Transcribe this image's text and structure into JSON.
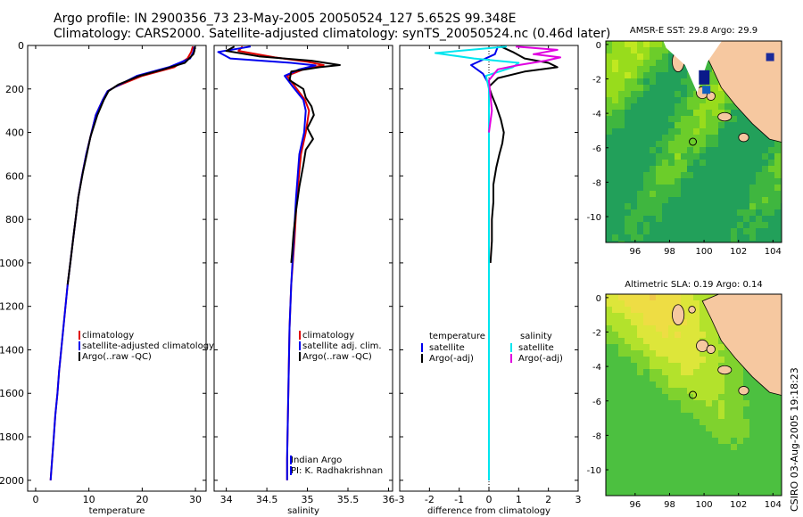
{
  "header": {
    "line1": "Argo profile: IN 2900356_73 23-May-2005 20050524_127 5.652S 99.348E",
    "line2": "Climatology: CARS2000. Satellite-adjusted climatology: synTS_20050524.nc (0.46d later)"
  },
  "credit": "CSIRO 03-Aug-2005 19:18:23",
  "colors": {
    "red": "#e00000",
    "blue": "#0000ee",
    "black": "#000000",
    "cyan": "#00e5ee",
    "magenta": "#e000e0",
    "land": "#f6c8a0",
    "dot": "#e8e8e8"
  },
  "chart_data": [
    {
      "type": "line",
      "id": "temperature",
      "xlabel": "temperature",
      "ylabel": "",
      "xlim": [
        -1.5,
        32
      ],
      "ylim": [
        2050,
        0
      ],
      "xticks": [
        0,
        10,
        20,
        30
      ],
      "xtick_labels": [
        "0",
        "10",
        "20",
        "30"
      ],
      "yticks": [
        0,
        200,
        400,
        600,
        800,
        1000,
        1200,
        1400,
        1600,
        1800,
        2000
      ],
      "ytick_labels": [
        "0",
        "200",
        "400",
        "600",
        "800",
        "1000",
        "1200",
        "1400",
        "1600",
        "1800",
        "2000"
      ],
      "legend": [
        "climatology",
        "satellite-adjusted climatology",
        "Argo(..raw -QC)"
      ],
      "series": [
        {
          "name": "climatology",
          "color": "red",
          "points": [
            [
              29.5,
              5
            ],
            [
              29.2,
              30
            ],
            [
              28.5,
              60
            ],
            [
              26,
              100
            ],
            [
              20,
              140
            ],
            [
              15,
              190
            ],
            [
              13.5,
              210
            ],
            [
              12.6,
              250
            ],
            [
              11.3,
              320
            ],
            [
              10.5,
              400
            ],
            [
              9.5,
              500
            ],
            [
              8.7,
              600
            ],
            [
              8,
              700
            ],
            [
              7.5,
              800
            ],
            [
              7,
              900
            ],
            [
              6.5,
              1000
            ],
            [
              6,
              1100
            ],
            [
              5.6,
              1200
            ],
            [
              5.2,
              1300
            ],
            [
              4.8,
              1400
            ],
            [
              4.4,
              1500
            ],
            [
              4.1,
              1600
            ],
            [
              3.7,
              1700
            ],
            [
              3.4,
              1800
            ],
            [
              3.1,
              1900
            ],
            [
              2.8,
              2000
            ]
          ]
        },
        {
          "name": "satellite-adjusted climatology",
          "color": "blue",
          "points": [
            [
              29.8,
              5
            ],
            [
              29.6,
              30
            ],
            [
              29,
              60
            ],
            [
              25,
              100
            ],
            [
              19,
              140
            ],
            [
              15,
              190
            ],
            [
              13.5,
              210
            ],
            [
              12.6,
              250
            ],
            [
              11.3,
              320
            ],
            [
              10.5,
              400
            ],
            [
              9.5,
              500
            ],
            [
              8.7,
              600
            ],
            [
              8,
              700
            ],
            [
              7.5,
              800
            ],
            [
              7,
              900
            ],
            [
              6.5,
              1000
            ],
            [
              6,
              1100
            ],
            [
              5.6,
              1200
            ],
            [
              5.2,
              1300
            ],
            [
              4.8,
              1400
            ],
            [
              4.4,
              1500
            ],
            [
              4.1,
              1600
            ],
            [
              3.7,
              1700
            ],
            [
              3.4,
              1800
            ],
            [
              3.1,
              1900
            ],
            [
              2.8,
              2000
            ]
          ]
        },
        {
          "name": "Argo(..raw -QC)",
          "color": "black",
          "points": [
            [
              29.9,
              5
            ],
            [
              29.8,
              25
            ],
            [
              29.6,
              40
            ],
            [
              28,
              80
            ],
            [
              24,
              110
            ],
            [
              19.5,
              140
            ],
            [
              15.5,
              180
            ],
            [
              13.7,
              210
            ],
            [
              12.8,
              250
            ],
            [
              11.6,
              320
            ],
            [
              10.3,
              420
            ],
            [
              9.6,
              500
            ],
            [
              8.9,
              580
            ],
            [
              8,
              700
            ],
            [
              7.6,
              780
            ],
            [
              7.1,
              880
            ],
            [
              6.7,
              960
            ],
            [
              6.3,
              1040
            ],
            [
              6,
              1100
            ]
          ]
        }
      ]
    },
    {
      "type": "line",
      "id": "salinity",
      "xlabel": "salinity",
      "ylabel": "",
      "xlim": [
        33.85,
        36.05
      ],
      "ylim": [
        2050,
        0
      ],
      "xticks": [
        34,
        34.5,
        35,
        35.5,
        36
      ],
      "xtick_labels": [
        "34",
        "34.5",
        "35",
        "35.5",
        "36"
      ],
      "legend": [
        "climatology",
        "satellite adj. clim.",
        "Argo(..raw -QC)"
      ],
      "annotation": [
        "Indian Argo",
        "PI: K. Radhakrishnan"
      ],
      "series": [
        {
          "name": "climatology",
          "color": "red",
          "points": [
            [
              34.2,
              5
            ],
            [
              34.15,
              25
            ],
            [
              34.6,
              55
            ],
            [
              35,
              75
            ],
            [
              35.2,
              90
            ],
            [
              34.95,
              110
            ],
            [
              34.75,
              140
            ],
            [
              34.85,
              190
            ],
            [
              34.97,
              250
            ],
            [
              35.02,
              300
            ],
            [
              34.98,
              400
            ],
            [
              34.92,
              500
            ],
            [
              34.87,
              700
            ],
            [
              34.84,
              900
            ],
            [
              34.8,
              1100
            ],
            [
              34.78,
              1300
            ],
            [
              34.77,
              1500
            ],
            [
              34.76,
              1700
            ],
            [
              34.75,
              1900
            ],
            [
              34.75,
              2000
            ]
          ]
        },
        {
          "name": "satellite adj. clim.",
          "color": "blue",
          "points": [
            [
              34.3,
              5
            ],
            [
              33.9,
              30
            ],
            [
              34.05,
              60
            ],
            [
              34.8,
              80
            ],
            [
              35.1,
              92
            ],
            [
              34.9,
              110
            ],
            [
              34.72,
              140
            ],
            [
              34.82,
              190
            ],
            [
              34.95,
              250
            ],
            [
              34.98,
              300
            ],
            [
              34.96,
              400
            ],
            [
              34.9,
              500
            ],
            [
              34.86,
              700
            ],
            [
              34.83,
              900
            ],
            [
              34.8,
              1100
            ],
            [
              34.78,
              1300
            ],
            [
              34.77,
              1500
            ],
            [
              34.76,
              1700
            ],
            [
              34.75,
              1900
            ],
            [
              34.75,
              2000
            ]
          ]
        },
        {
          "name": "Argo(..raw -QC)",
          "color": "black",
          "points": [
            [
              34.1,
              5
            ],
            [
              34.0,
              25
            ],
            [
              34.4,
              50
            ],
            [
              35.05,
              70
            ],
            [
              35.4,
              90
            ],
            [
              35.15,
              100
            ],
            [
              34.8,
              120
            ],
            [
              34.78,
              160
            ],
            [
              34.95,
              200
            ],
            [
              34.98,
              240
            ],
            [
              35.05,
              280
            ],
            [
              35.08,
              320
            ],
            [
              35.0,
              380
            ],
            [
              35.07,
              430
            ],
            [
              34.98,
              480
            ],
            [
              34.95,
              550
            ],
            [
              34.9,
              650
            ],
            [
              34.86,
              760
            ],
            [
              34.83,
              860
            ],
            [
              34.81,
              960
            ],
            [
              34.8,
              1000
            ]
          ]
        }
      ]
    },
    {
      "type": "line",
      "id": "difference",
      "xlabel": "difference from climatology",
      "ylabel": "",
      "xlim": [
        -3,
        3
      ],
      "ylim": [
        2050,
        0
      ],
      "xticks": [
        -3,
        -2,
        -1,
        0,
        1,
        2,
        3
      ],
      "xtick_labels": [
        "-3",
        "-2",
        "-1",
        "0",
        "1",
        "2",
        "3"
      ],
      "legend_left_title": "temperature",
      "legend_left": [
        "satellite",
        "Argo(-adj)"
      ],
      "legend_right_title": "salinity",
      "legend_right": [
        "satellite",
        "Argo(-adj)"
      ],
      "series": [
        {
          "name": "temperature satellite",
          "color": "blue",
          "points": [
            [
              0.3,
              5
            ],
            [
              0.2,
              40
            ],
            [
              -0.6,
              90
            ],
            [
              -0.2,
              130
            ],
            [
              0,
              180
            ],
            [
              0,
              2000
            ]
          ]
        },
        {
          "name": "temperature Argo(-adj)",
          "color": "black",
          "points": [
            [
              0.4,
              5
            ],
            [
              0.8,
              30
            ],
            [
              1.2,
              60
            ],
            [
              2.0,
              80
            ],
            [
              2.3,
              100
            ],
            [
              1.2,
              120
            ],
            [
              0.3,
              150
            ],
            [
              0,
              190
            ],
            [
              0.1,
              230
            ],
            [
              0.25,
              280
            ],
            [
              0.4,
              340
            ],
            [
              0.5,
              400
            ],
            [
              0.45,
              450
            ],
            [
              0.35,
              500
            ],
            [
              0.25,
              560
            ],
            [
              0.15,
              640
            ],
            [
              0.15,
              720
            ],
            [
              0.1,
              800
            ],
            [
              0.1,
              900
            ],
            [
              0.05,
              1000
            ]
          ]
        },
        {
          "name": "salinity satellite",
          "color": "cyan",
          "points": [
            [
              0.6,
              5
            ],
            [
              -1.8,
              35
            ],
            [
              -0.5,
              60
            ],
            [
              1.0,
              80
            ],
            [
              0.8,
              100
            ],
            [
              -0.1,
              140
            ],
            [
              0,
              200
            ],
            [
              0,
              2000
            ]
          ]
        },
        {
          "name": "salinity Argo(-adj)",
          "color": "magenta",
          "points": [
            [
              0.9,
              5
            ],
            [
              2.3,
              20
            ],
            [
              1.5,
              40
            ],
            [
              2.4,
              55
            ],
            [
              1.9,
              70
            ],
            [
              1.0,
              90
            ],
            [
              0.3,
              110
            ],
            [
              0,
              160
            ],
            [
              0.05,
              230
            ],
            [
              0.1,
              300
            ],
            [
              0,
              400
            ]
          ]
        }
      ]
    },
    {
      "type": "heatmap",
      "id": "sst_map",
      "title": "AMSR-E SST: 29.8  Argo: 29.9",
      "xlim": [
        94.3,
        104.5
      ],
      "ylim": [
        -11.5,
        0.2
      ],
      "xticks": [
        96,
        98,
        100,
        102,
        104
      ],
      "xtick_labels": [
        "96",
        "98",
        "100",
        "102",
        "104"
      ],
      "yticks": [
        0,
        -2,
        -4,
        -6,
        -8,
        -10
      ],
      "ytick_labels": [
        "0",
        "-2",
        "-4",
        "-6",
        "-8",
        "-10"
      ],
      "marker": [
        99.35,
        -5.65
      ]
    },
    {
      "type": "heatmap",
      "id": "sla_map",
      "title": "Altimetric SLA: 0.19  Argo: 0.14",
      "xlim": [
        94.3,
        104.5
      ],
      "ylim": [
        -11.5,
        0.2
      ],
      "xticks": [
        96,
        98,
        100,
        102,
        104
      ],
      "xtick_labels": [
        "96",
        "98",
        "100",
        "102",
        "104"
      ],
      "yticks": [
        0,
        -2,
        -4,
        -6,
        -8,
        -10
      ],
      "ytick_labels": [
        "0",
        "-2",
        "-4",
        "-6",
        "-8",
        "-10"
      ],
      "marker": [
        99.35,
        -5.65
      ]
    }
  ]
}
